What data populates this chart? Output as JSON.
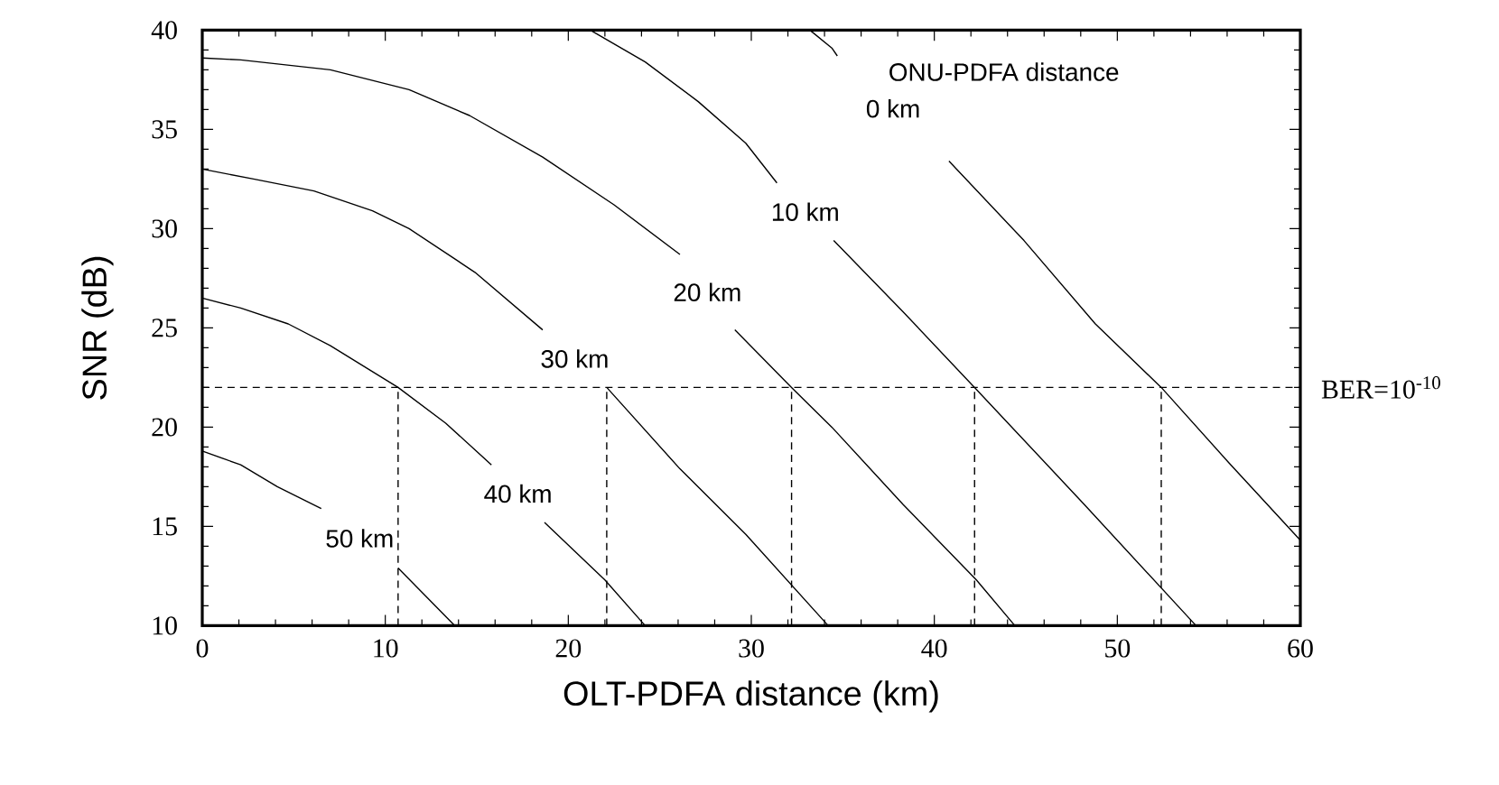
{
  "chart_data": {
    "type": "line",
    "xlabel": "OLT-PDFA distance (km)",
    "ylabel": "SNR (dB)",
    "legend_title": "ONU-PDFA distance",
    "xlim": [
      0,
      60
    ],
    "ylim": [
      10,
      40
    ],
    "xticks": [
      0,
      10,
      20,
      30,
      40,
      50,
      60
    ],
    "yticks": [
      10,
      15,
      20,
      25,
      30,
      35,
      40
    ],
    "line_style": "solid",
    "grid": false,
    "series": [
      {
        "name": "0 km",
        "color": "#000000",
        "x": [
          33.2,
          34.4,
          34.7,
          37.7,
          40.8,
          44.9,
          48.8,
          52.4,
          56.1,
          60
        ],
        "values": [
          40,
          39.1,
          38.7,
          null,
          33.4,
          29.4,
          25.2,
          22,
          18.2,
          14.3
        ]
      },
      {
        "name": "10 km",
        "color": "#000000",
        "x": [
          21.2,
          24.2,
          27.1,
          29.7,
          31.4,
          33.0,
          34.5,
          38.3,
          42.2,
          48.2,
          54.3
        ],
        "values": [
          40,
          38.4,
          36.4,
          34.3,
          32.3,
          null,
          29.4,
          25.8,
          22,
          16.1,
          10
        ]
      },
      {
        "name": "20 km",
        "color": "#000000",
        "x": [
          0,
          2.1,
          7.0,
          11.3,
          14.6,
          18.6,
          22.5,
          26.1,
          27.6,
          29.1,
          32.2,
          34.4,
          38.3,
          42.3,
          44.4
        ],
        "values": [
          38.6,
          38.5,
          38.0,
          37.0,
          35.7,
          33.6,
          31.2,
          28.7,
          null,
          24.9,
          22,
          20.0,
          16.1,
          12.3,
          10
        ]
      },
      {
        "name": "30 km",
        "color": "#000000",
        "x": [
          0,
          2.8,
          6.1,
          9.3,
          11.3,
          14.9,
          18.6,
          20.3,
          22.1,
          26.1,
          29.7,
          34.2
        ],
        "values": [
          33.0,
          32.5,
          31.9,
          30.9,
          30.0,
          27.8,
          24.9,
          null,
          22,
          17.9,
          14.6,
          10
        ]
      },
      {
        "name": "40 km",
        "color": "#000000",
        "x": [
          0,
          2.1,
          4.7,
          7.0,
          10.7,
          13.3,
          15.8,
          17.2,
          18.7,
          22.0,
          24.2
        ],
        "values": [
          26.5,
          26.0,
          25.2,
          24.1,
          22,
          20.2,
          18.1,
          null,
          15.2,
          12.3,
          10
        ]
      },
      {
        "name": "50 km",
        "color": "#000000",
        "x": [
          0,
          2.1,
          4.1,
          6.5,
          8.6,
          10.7,
          13.8
        ],
        "values": [
          18.8,
          18.1,
          17.0,
          15.9,
          null,
          12.9,
          10
        ]
      },
      {
        "color": "#000000",
        "line_style": "dashed",
        "x": [
          10.7,
          10.7
        ],
        "values": [
          10,
          22
        ]
      },
      {
        "color": "#000000",
        "line_style": "dashed",
        "x": [
          22.1,
          22.1
        ],
        "values": [
          10,
          22
        ]
      },
      {
        "color": "#000000",
        "line_style": "dashed",
        "x": [
          32.2,
          32.2
        ],
        "values": [
          10,
          22
        ]
      },
      {
        "color": "#000000",
        "line_style": "dashed",
        "x": [
          42.2,
          42.2
        ],
        "values": [
          10,
          22
        ]
      },
      {
        "color": "#000000",
        "line_style": "dashed",
        "x": [
          52.4,
          52.4
        ],
        "values": [
          10,
          22
        ]
      }
    ],
    "ref_lines": [
      {
        "axis": "y",
        "value": 22,
        "color": "#000000",
        "line_style": "dashed"
      }
    ],
    "annotations": [
      "BER=10$^{-10}$"
    ]
  }
}
